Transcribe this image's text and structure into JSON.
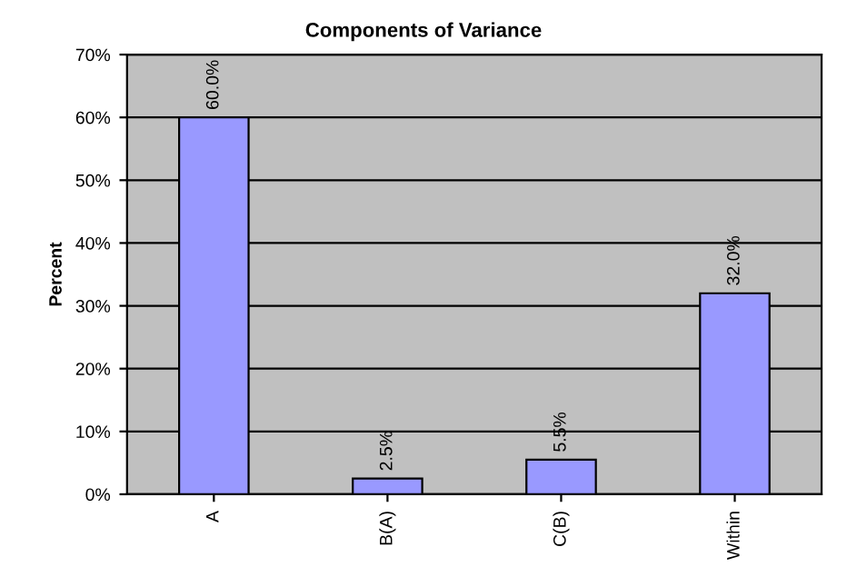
{
  "chart_data": {
    "type": "bar",
    "title": "Components of Variance",
    "ylabel": "Percent",
    "categories": [
      "A",
      "B(A)",
      "C(B)",
      "Within"
    ],
    "values": [
      60.0,
      2.5,
      5.5,
      32.0
    ],
    "value_labels": [
      "60.0%",
      "2.5%",
      "5.5%",
      "32.0%"
    ],
    "color": "#9999ff",
    "ylim": [
      0,
      70
    ],
    "yticks": [
      {
        "value": 0,
        "label": "0%"
      },
      {
        "value": 10,
        "label": "10%"
      },
      {
        "value": 20,
        "label": "20%"
      },
      {
        "value": 30,
        "label": "30%"
      },
      {
        "value": 40,
        "label": "40%"
      },
      {
        "value": 50,
        "label": "50%"
      },
      {
        "value": 60,
        "label": "60%"
      },
      {
        "value": 70,
        "label": "70%"
      }
    ],
    "grid": "y"
  }
}
